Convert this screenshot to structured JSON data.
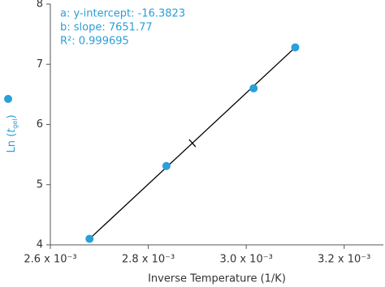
{
  "chart_data": {
    "type": "scatter",
    "y_label": [
      "Ln (",
      "t",
      "gel",
      ")"
    ],
    "x_label": "Inverse Temperature (1/K)",
    "annotations": [
      "a: y-intercept: -16.3823",
      "b: slope: 7651.77",
      "R²: 0.999695"
    ],
    "color": "#2a9fd8",
    "line_color": "#000000",
    "x": [
      0.00268,
      0.002837,
      0.003015,
      0.0031
    ],
    "values": [
      4.1,
      5.31,
      6.6,
      7.28
    ],
    "fit_line": {
      "x": [
        0.00268,
        0.0031
      ],
      "values": [
        4.1,
        7.28
      ]
    },
    "xlim": [
      0.0026,
      0.00328
    ],
    "ylim": [
      4,
      8
    ],
    "xticks": [
      {
        "value": 0.0026,
        "label": "2.6 x 10⁻³"
      },
      {
        "value": 0.0028,
        "label": "2.8 x 10⁻³"
      },
      {
        "value": 0.003,
        "label": "3.0 x 10⁻³"
      },
      {
        "value": 0.0032,
        "label": "3.2 x 10⁻³"
      }
    ],
    "yticks": [
      4,
      5,
      6,
      7,
      8
    ]
  }
}
